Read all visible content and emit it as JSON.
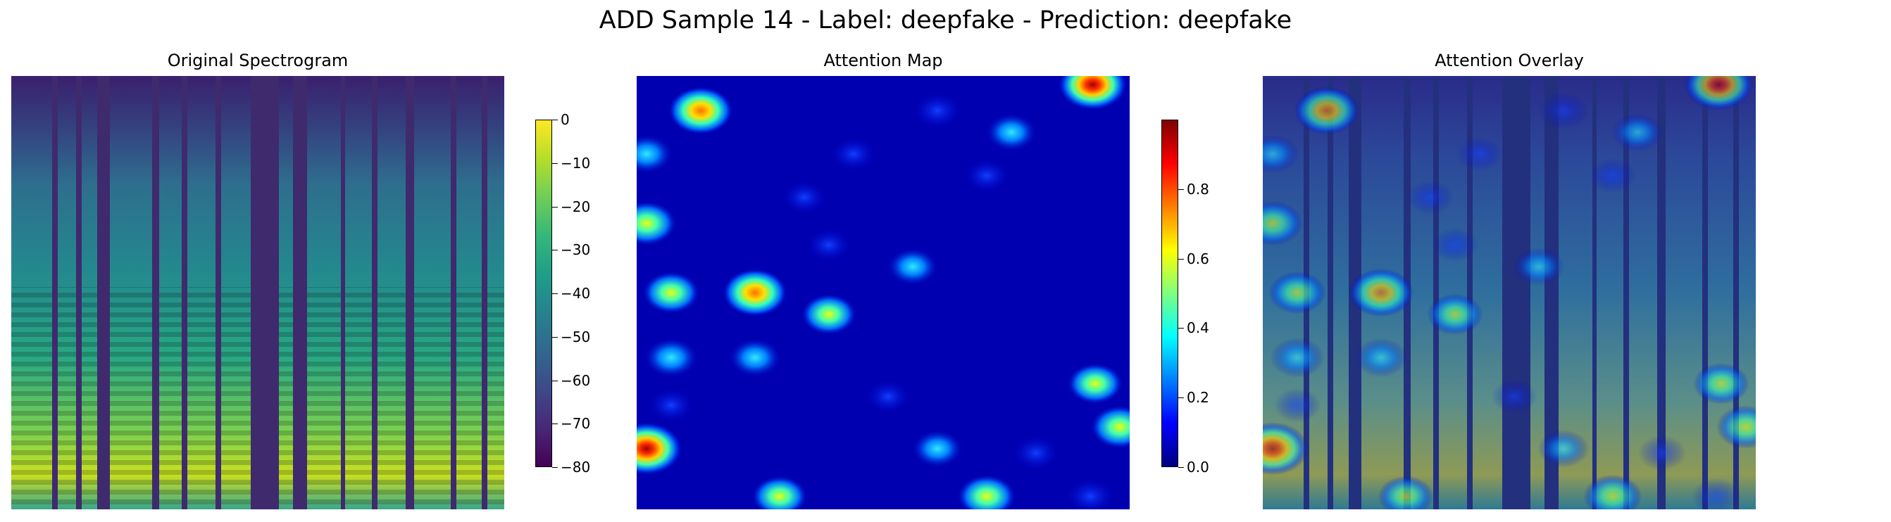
{
  "title": "ADD Sample 14 - Label: deepfake - Prediction: deepfake",
  "panels": [
    {
      "title": "Original Spectrogram"
    },
    {
      "title": "Attention Map"
    },
    {
      "title": "Attention Overlay"
    }
  ],
  "colors": {
    "viridis_low": "#440154",
    "viridis_mid": "#21918c",
    "viridis_high": "#fde725",
    "jet_low": "#00007f",
    "jet_high": "#7f0000"
  },
  "chart_data": [
    {
      "type": "heatmap",
      "title": "Original Spectrogram",
      "colormap": "viridis",
      "colorbar": {
        "range": [
          -80,
          0
        ],
        "ticks": [
          "0",
          "−10",
          "−20",
          "−30",
          "−40",
          "−50",
          "−60",
          "−70",
          "−80"
        ]
      }
    },
    {
      "type": "heatmap",
      "title": "Attention Map",
      "colormap": "jet",
      "colorbar": {
        "range": [
          0.0,
          1.0
        ],
        "ticks": [
          "0.8",
          "0.6",
          "0.4",
          "0.2",
          "0.0"
        ]
      },
      "hotspots": [
        {
          "x": 0.925,
          "y": 0.02,
          "v": 0.9
        },
        {
          "x": 0.13,
          "y": 0.08,
          "v": 0.75
        },
        {
          "x": 0.02,
          "y": 0.18,
          "v": 0.35
        },
        {
          "x": 0.61,
          "y": 0.08,
          "v": 0.25
        },
        {
          "x": 0.76,
          "y": 0.13,
          "v": 0.3
        },
        {
          "x": 0.44,
          "y": 0.18,
          "v": 0.15
        },
        {
          "x": 0.71,
          "y": 0.23,
          "v": 0.15
        },
        {
          "x": 0.02,
          "y": 0.34,
          "v": 0.6
        },
        {
          "x": 0.34,
          "y": 0.28,
          "v": 0.12
        },
        {
          "x": 0.39,
          "y": 0.39,
          "v": 0.12
        },
        {
          "x": 0.56,
          "y": 0.44,
          "v": 0.3
        },
        {
          "x": 0.07,
          "y": 0.5,
          "v": 0.5
        },
        {
          "x": 0.24,
          "y": 0.5,
          "v": 0.75
        },
        {
          "x": 0.39,
          "y": 0.55,
          "v": 0.45
        },
        {
          "x": 0.07,
          "y": 0.65,
          "v": 0.4
        },
        {
          "x": 0.24,
          "y": 0.65,
          "v": 0.35
        },
        {
          "x": 0.93,
          "y": 0.71,
          "v": 0.45
        },
        {
          "x": 0.07,
          "y": 0.76,
          "v": 0.15
        },
        {
          "x": 0.98,
          "y": 0.81,
          "v": 0.55
        },
        {
          "x": 0.02,
          "y": 0.86,
          "v": 0.98
        },
        {
          "x": 0.61,
          "y": 0.86,
          "v": 0.3
        },
        {
          "x": 0.81,
          "y": 0.87,
          "v": 0.2
        },
        {
          "x": 0.29,
          "y": 0.97,
          "v": 0.45
        },
        {
          "x": 0.71,
          "y": 0.97,
          "v": 0.55
        },
        {
          "x": 0.92,
          "y": 0.97,
          "v": 0.25
        },
        {
          "x": 0.51,
          "y": 0.74,
          "v": 0.12
        }
      ]
    },
    {
      "type": "heatmap",
      "title": "Attention Overlay"
    }
  ]
}
